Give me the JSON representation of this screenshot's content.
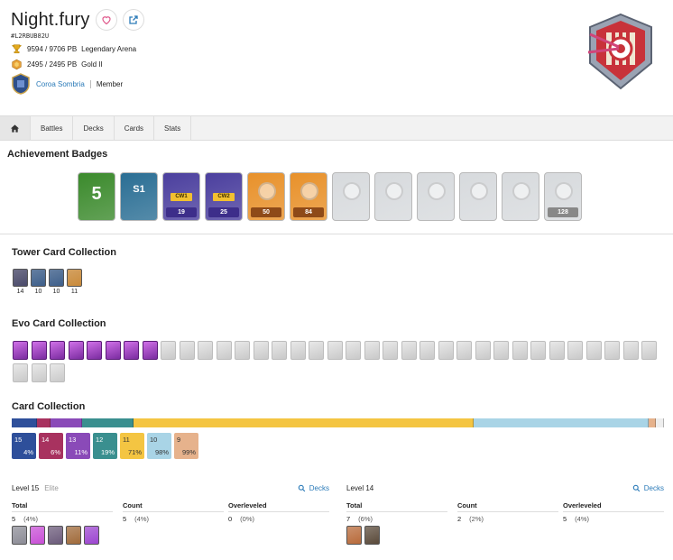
{
  "player": {
    "name": "Night.fury",
    "tag": "#L2RBUB82U",
    "trophies": "9594 / 9706 PB",
    "arena": "Legendary Arena",
    "league_trophies": "2495 / 2495 PB",
    "league": "Gold II",
    "clan_name": "Coroa Sombria",
    "clan_role": "Member"
  },
  "nav": {
    "tabs": [
      "Battles",
      "Decks",
      "Cards",
      "Stats"
    ],
    "home_icon": "home-icon"
  },
  "sections": {
    "achievements": "Achievement Badges",
    "tower": "Tower Card Collection",
    "evo": "Evo Card Collection",
    "cards": "Card Collection"
  },
  "badges": [
    {
      "bg": "#3b8a2c",
      "big": "5",
      "pill": ""
    },
    {
      "bg": "#2a6e94",
      "big": "S1",
      "pill": ""
    },
    {
      "bg": "#4b3f9e",
      "cw": "CW1",
      "pill": "19",
      "pill_bg": "#3d2e8a"
    },
    {
      "bg": "#4b3f9e",
      "cw": "CW2",
      "pill": "25",
      "pill_bg": "#3d2e8a"
    },
    {
      "bg": "#e8912a",
      "pill": "50",
      "pill_bg": "#8e4a18"
    },
    {
      "bg": "#e8912a",
      "pill": "84",
      "pill_bg": "#8e4a18"
    },
    {
      "bg": "#d7dadd",
      "pill": ""
    },
    {
      "bg": "#d7dadd",
      "pill": ""
    },
    {
      "bg": "#d7dadd",
      "pill": ""
    },
    {
      "bg": "#d7dadd",
      "pill": ""
    },
    {
      "bg": "#d7dadd",
      "pill": ""
    },
    {
      "bg": "#d7dadd",
      "pill": "128",
      "pill_bg": "#888"
    }
  ],
  "tower_cards": [
    {
      "level": "14",
      "color": "#4a4a6a"
    },
    {
      "level": "10",
      "color": "#3e5f8a"
    },
    {
      "level": "10",
      "color": "#3e5f8a"
    },
    {
      "level": "11",
      "color": "#c98a3a"
    }
  ],
  "evo": {
    "owned": 8,
    "total": 38
  },
  "card_bar": [
    {
      "pct": 3.9,
      "color": "#2e4f9a"
    },
    {
      "pct": 2.0,
      "color": "#a8325f"
    },
    {
      "pct": 4.9,
      "color": "#8a4ab8"
    },
    {
      "pct": 7.9,
      "color": "#3a8f8f"
    },
    {
      "pct": 52.1,
      "color": "#f4c542"
    },
    {
      "pct": 26.9,
      "color": "#a9d4e6"
    },
    {
      "pct": 1.0,
      "color": "#e6b28c"
    },
    {
      "pct": 1.3,
      "color": "#eeeeee"
    }
  ],
  "level_boxes": [
    {
      "level": "15",
      "pct": "4%",
      "bg": "#2e4f9a",
      "fg": "#ffffff"
    },
    {
      "level": "14",
      "pct": "6%",
      "bg": "#a8325f",
      "fg": "#ffffff"
    },
    {
      "level": "13",
      "pct": "11%",
      "bg": "#8a4ab8",
      "fg": "#ffffff"
    },
    {
      "level": "12",
      "pct": "19%",
      "bg": "#3a8f8f",
      "fg": "#ffffff"
    },
    {
      "level": "11",
      "pct": "71%",
      "bg": "#f4c542",
      "fg": "#333333"
    },
    {
      "level": "10",
      "pct": "98%",
      "bg": "#a9d4e6",
      "fg": "#333333"
    },
    {
      "level": "9",
      "pct": "99%",
      "bg": "#e6b28c",
      "fg": "#333333"
    }
  ],
  "level_panels": [
    {
      "title": "Level 15",
      "elite": "Elite",
      "decks": "Decks",
      "total_label": "Total",
      "count_label": "Count",
      "over_label": "Overleveled",
      "total": "5",
      "total_pct": "(4%)",
      "count": "5",
      "count_pct": "(4%)",
      "over": "0",
      "over_pct": "(0%)",
      "cards": [
        "#8c8c96",
        "#c84fd6",
        "#6b5a7a",
        "#a06a3a",
        "#9c45d0"
      ]
    },
    {
      "title": "Level 14",
      "elite": "",
      "decks": "Decks",
      "total_label": "Total",
      "count_label": "Count",
      "over_label": "Overleveled",
      "total": "7",
      "total_pct": "(6%)",
      "count": "2",
      "count_pct": "(2%)",
      "over": "5",
      "over_pct": "(4%)",
      "cards": [
        "#b86a3a",
        "#5a4a3a"
      ]
    }
  ]
}
